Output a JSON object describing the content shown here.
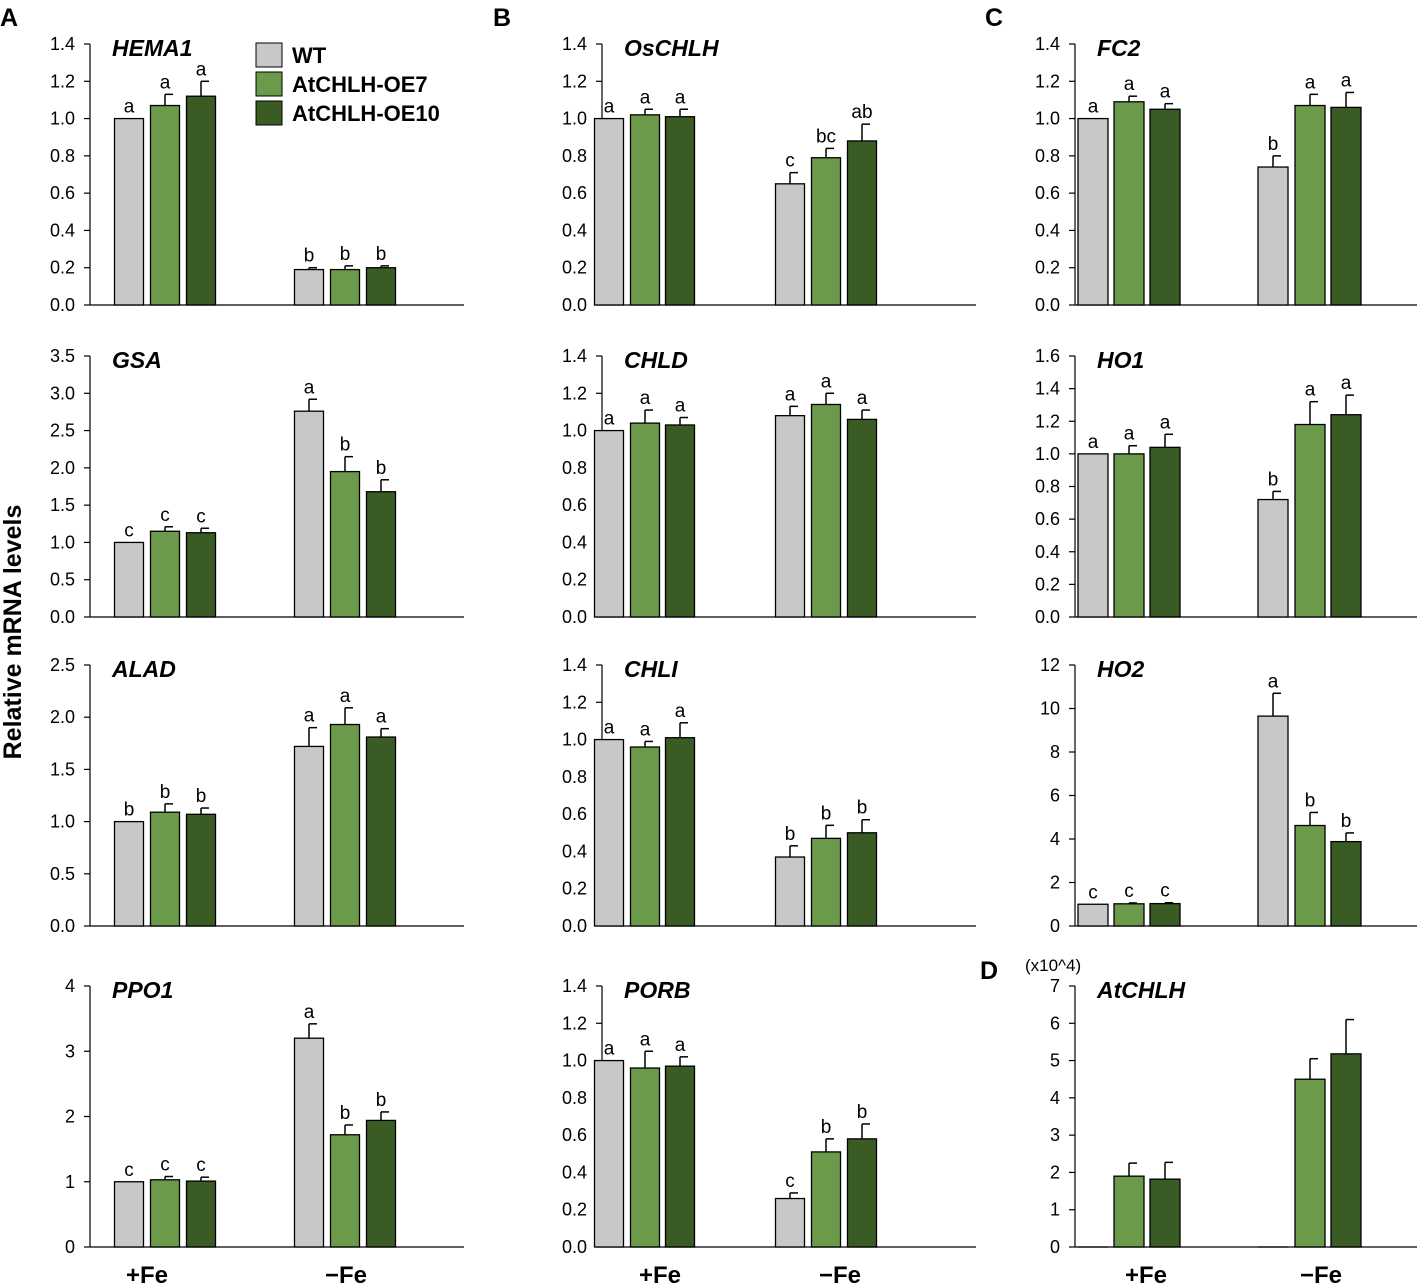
{
  "ylabel": "Relative mRNA levels",
  "condition_labels": [
    "+Fe",
    "−Fe"
  ],
  "panel_letters": [
    "A",
    "B",
    "C",
    "D"
  ],
  "legend": [
    {
      "name": "WT",
      "color": "#c8c8c8"
    },
    {
      "name": "AtCHLH-OE7",
      "color": "#6b9b4a"
    },
    {
      "name": "AtCHLH-OE10",
      "color": "#3a5c24"
    }
  ],
  "chart_data": [
    {
      "type": "bar",
      "gene": "HEMA1",
      "categories": [
        "+Fe",
        "−Fe"
      ],
      "ylim": [
        0,
        1.4
      ],
      "yticks": [
        "0.0",
        "0.2",
        "0.4",
        "0.6",
        "0.8",
        "1.0",
        "1.2",
        "1.4"
      ],
      "series": [
        {
          "name": "WT",
          "values": [
            1.0,
            0.19
          ],
          "errors": [
            0,
            0.01
          ],
          "letters": [
            "a",
            "b"
          ]
        },
        {
          "name": "AtCHLH-OE7",
          "values": [
            1.07,
            0.19
          ],
          "errors": [
            0.06,
            0.02
          ],
          "letters": [
            "a",
            "b"
          ]
        },
        {
          "name": "AtCHLH-OE10",
          "values": [
            1.12,
            0.2
          ],
          "errors": [
            0.08,
            0.01
          ],
          "letters": [
            "a",
            "b"
          ]
        }
      ]
    },
    {
      "type": "bar",
      "gene": "GSA",
      "categories": [
        "+Fe",
        "−Fe"
      ],
      "ylim": [
        0,
        3.5
      ],
      "yticks": [
        "0.0",
        "0.5",
        "1.0",
        "1.5",
        "2.0",
        "2.5",
        "3.0",
        "3.5"
      ],
      "series": [
        {
          "name": "WT",
          "values": [
            1.0,
            2.76
          ],
          "errors": [
            0,
            0.16
          ],
          "letters": [
            "c",
            "a"
          ]
        },
        {
          "name": "AtCHLH-OE7",
          "values": [
            1.15,
            1.95
          ],
          "errors": [
            0.06,
            0.2
          ],
          "letters": [
            "c",
            "b"
          ]
        },
        {
          "name": "AtCHLH-OE10",
          "values": [
            1.13,
            1.68
          ],
          "errors": [
            0.06,
            0.16
          ],
          "letters": [
            "c",
            "b"
          ]
        }
      ]
    },
    {
      "type": "bar",
      "gene": "ALAD",
      "categories": [
        "+Fe",
        "−Fe"
      ],
      "ylim": [
        0,
        2.5
      ],
      "yticks": [
        "0.0",
        "0.5",
        "1.0",
        "1.5",
        "2.0",
        "2.5"
      ],
      "series": [
        {
          "name": "WT",
          "values": [
            1.0,
            1.72
          ],
          "errors": [
            0,
            0.18
          ],
          "letters": [
            "b",
            "a"
          ]
        },
        {
          "name": "AtCHLH-OE7",
          "values": [
            1.09,
            1.93
          ],
          "errors": [
            0.08,
            0.16
          ],
          "letters": [
            "b",
            "a"
          ]
        },
        {
          "name": "AtCHLH-OE10",
          "values": [
            1.07,
            1.81
          ],
          "errors": [
            0.06,
            0.08
          ],
          "letters": [
            "b",
            "a"
          ]
        }
      ]
    },
    {
      "type": "bar",
      "gene": "PPO1",
      "categories": [
        "+Fe",
        "−Fe"
      ],
      "ylim": [
        0,
        4
      ],
      "yticks": [
        "0",
        "1",
        "2",
        "3",
        "4"
      ],
      "series": [
        {
          "name": "WT",
          "values": [
            1.0,
            3.2
          ],
          "errors": [
            0,
            0.22
          ],
          "letters": [
            "c",
            "a"
          ]
        },
        {
          "name": "AtCHLH-OE7",
          "values": [
            1.03,
            1.72
          ],
          "errors": [
            0.05,
            0.15
          ],
          "letters": [
            "c",
            "b"
          ]
        },
        {
          "name": "AtCHLH-OE10",
          "values": [
            1.01,
            1.94
          ],
          "errors": [
            0.06,
            0.13
          ],
          "letters": [
            "c",
            "b"
          ]
        }
      ]
    },
    {
      "type": "bar",
      "gene": "OsCHLH",
      "categories": [
        "+Fe",
        "−Fe"
      ],
      "ylim": [
        0,
        1.4
      ],
      "yticks": [
        "0.0",
        "0.2",
        "0.4",
        "0.6",
        "0.8",
        "1.0",
        "1.2",
        "1.4"
      ],
      "series": [
        {
          "name": "WT",
          "values": [
            1.0,
            0.65
          ],
          "errors": [
            0,
            0.06
          ],
          "letters": [
            "a",
            "c"
          ]
        },
        {
          "name": "AtCHLH-OE7",
          "values": [
            1.02,
            0.79
          ],
          "errors": [
            0.03,
            0.05
          ],
          "letters": [
            "a",
            "bc"
          ]
        },
        {
          "name": "AtCHLH-OE10",
          "values": [
            1.01,
            0.88
          ],
          "errors": [
            0.04,
            0.09
          ],
          "letters": [
            "a",
            "ab"
          ]
        }
      ]
    },
    {
      "type": "bar",
      "gene": "CHLD",
      "categories": [
        "+Fe",
        "−Fe"
      ],
      "ylim": [
        0,
        1.4
      ],
      "yticks": [
        "0.0",
        "0.2",
        "0.4",
        "0.6",
        "0.8",
        "1.0",
        "1.2",
        "1.4"
      ],
      "series": [
        {
          "name": "WT",
          "values": [
            1.0,
            1.08
          ],
          "errors": [
            0,
            0.05
          ],
          "letters": [
            "a",
            "a"
          ]
        },
        {
          "name": "AtCHLH-OE7",
          "values": [
            1.04,
            1.14
          ],
          "errors": [
            0.07,
            0.06
          ],
          "letters": [
            "a",
            "a"
          ]
        },
        {
          "name": "AtCHLH-OE10",
          "values": [
            1.03,
            1.06
          ],
          "errors": [
            0.04,
            0.05
          ],
          "letters": [
            "a",
            "a"
          ]
        }
      ]
    },
    {
      "type": "bar",
      "gene": "CHLI",
      "categories": [
        "+Fe",
        "−Fe"
      ],
      "ylim": [
        0,
        1.4
      ],
      "yticks": [
        "0.0",
        "0.2",
        "0.4",
        "0.6",
        "0.8",
        "1.0",
        "1.2",
        "1.4"
      ],
      "series": [
        {
          "name": "WT",
          "values": [
            1.0,
            0.37
          ],
          "errors": [
            0,
            0.06
          ],
          "letters": [
            "a",
            "b"
          ]
        },
        {
          "name": "AtCHLH-OE7",
          "values": [
            0.96,
            0.47
          ],
          "errors": [
            0.03,
            0.07
          ],
          "letters": [
            "a",
            "b"
          ]
        },
        {
          "name": "AtCHLH-OE10",
          "values": [
            1.01,
            0.5
          ],
          "errors": [
            0.08,
            0.07
          ],
          "letters": [
            "a",
            "b"
          ]
        }
      ]
    },
    {
      "type": "bar",
      "gene": "PORB",
      "categories": [
        "+Fe",
        "−Fe"
      ],
      "ylim": [
        0,
        1.4
      ],
      "yticks": [
        "0.0",
        "0.2",
        "0.4",
        "0.6",
        "0.8",
        "1.0",
        "1.2",
        "1.4"
      ],
      "series": [
        {
          "name": "WT",
          "values": [
            1.0,
            0.26
          ],
          "errors": [
            0,
            0.03
          ],
          "letters": [
            "a",
            "c"
          ]
        },
        {
          "name": "AtCHLH-OE7",
          "values": [
            0.96,
            0.51
          ],
          "errors": [
            0.09,
            0.07
          ],
          "letters": [
            "a",
            "b"
          ]
        },
        {
          "name": "AtCHLH-OE10",
          "values": [
            0.97,
            0.58
          ],
          "errors": [
            0.05,
            0.08
          ],
          "letters": [
            "a",
            "b"
          ]
        }
      ]
    },
    {
      "type": "bar",
      "gene": "FC2",
      "categories": [
        "+Fe",
        "−Fe"
      ],
      "ylim": [
        0,
        1.4
      ],
      "yticks": [
        "0.0",
        "0.2",
        "0.4",
        "0.6",
        "0.8",
        "1.0",
        "1.2",
        "1.4"
      ],
      "series": [
        {
          "name": "WT",
          "values": [
            1.0,
            0.74
          ],
          "errors": [
            0,
            0.06
          ],
          "letters": [
            "a",
            "b"
          ]
        },
        {
          "name": "AtCHLH-OE7",
          "values": [
            1.09,
            1.07
          ],
          "errors": [
            0.03,
            0.06
          ],
          "letters": [
            "a",
            "a"
          ]
        },
        {
          "name": "AtCHLH-OE10",
          "values": [
            1.05,
            1.06
          ],
          "errors": [
            0.03,
            0.08
          ],
          "letters": [
            "a",
            "a"
          ]
        }
      ]
    },
    {
      "type": "bar",
      "gene": "HO1",
      "categories": [
        "+Fe",
        "−Fe"
      ],
      "ylim": [
        0,
        1.6
      ],
      "yticks": [
        "0.0",
        "0.2",
        "0.4",
        "0.6",
        "0.8",
        "1.0",
        "1.2",
        "1.4",
        "1.6"
      ],
      "series": [
        {
          "name": "WT",
          "values": [
            1.0,
            0.72
          ],
          "errors": [
            0,
            0.05
          ],
          "letters": [
            "a",
            "b"
          ]
        },
        {
          "name": "AtCHLH-OE7",
          "values": [
            1.0,
            1.18
          ],
          "errors": [
            0.05,
            0.14
          ],
          "letters": [
            "a",
            "a"
          ]
        },
        {
          "name": "AtCHLH-OE10",
          "values": [
            1.04,
            1.24
          ],
          "errors": [
            0.08,
            0.12
          ],
          "letters": [
            "a",
            "a"
          ]
        }
      ]
    },
    {
      "type": "bar",
      "gene": "HO2",
      "categories": [
        "+Fe",
        "−Fe"
      ],
      "ylim": [
        0,
        12
      ],
      "yticks": [
        "0",
        "2",
        "4",
        "6",
        "8",
        "10",
        "12"
      ],
      "series": [
        {
          "name": "WT",
          "values": [
            1.0,
            9.65
          ],
          "errors": [
            0,
            1.05
          ],
          "letters": [
            "c",
            "a"
          ]
        },
        {
          "name": "AtCHLH-OE7",
          "values": [
            1.02,
            4.62
          ],
          "errors": [
            0.04,
            0.6
          ],
          "letters": [
            "c",
            "b"
          ]
        },
        {
          "name": "AtCHLH-OE10",
          "values": [
            1.03,
            3.88
          ],
          "errors": [
            0.04,
            0.4
          ],
          "letters": [
            "c",
            "b"
          ]
        }
      ]
    },
    {
      "type": "bar",
      "gene": "AtCHLH",
      "multiplier": "(x10^4)",
      "categories": [
        "+Fe",
        "−Fe"
      ],
      "ylim": [
        0,
        7
      ],
      "yticks": [
        "0",
        "1",
        "2",
        "3",
        "4",
        "5",
        "6",
        "7"
      ],
      "series": [
        {
          "name": "WT",
          "values": [
            0,
            0
          ],
          "errors": [
            0,
            0
          ],
          "letters": [
            "",
            ""
          ]
        },
        {
          "name": "AtCHLH-OE7",
          "values": [
            1.9,
            4.5
          ],
          "errors": [
            0.35,
            0.55
          ],
          "letters": [
            "",
            ""
          ]
        },
        {
          "name": "AtCHLH-OE10",
          "values": [
            1.82,
            5.18
          ],
          "errors": [
            0.45,
            0.92
          ],
          "letters": [
            "",
            ""
          ]
        }
      ]
    }
  ]
}
